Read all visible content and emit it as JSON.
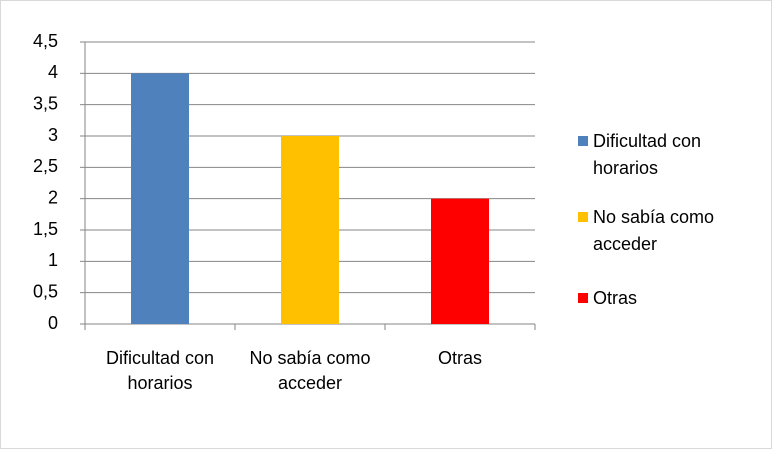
{
  "chart_data": {
    "type": "bar",
    "categories": [
      "Dificultad con horarios",
      "No sabía como acceder",
      "Otras"
    ],
    "values": [
      4,
      3,
      2
    ],
    "colors": [
      "#4f81bd",
      "#ffc000",
      "#ff0000"
    ],
    "ylim": [
      0,
      4.5
    ],
    "yticks": [
      0,
      {
        "value": 0.5,
        "label": "0,5"
      },
      1,
      {
        "value": 1.5,
        "label": "1,5"
      },
      2,
      {
        "value": 2.5,
        "label": "2,5"
      },
      3,
      {
        "value": 3.5,
        "label": "3,5"
      },
      4,
      {
        "value": 4.5,
        "label": "4,5"
      }
    ],
    "grid": true,
    "legend": "right"
  }
}
